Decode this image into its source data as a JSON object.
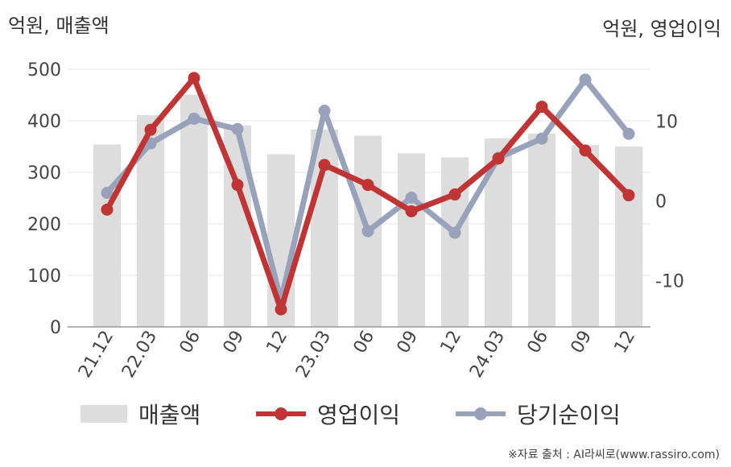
{
  "unit_left": "억원, 매출액",
  "unit_right": "억원, 영업이익",
  "source": "※자료 출처 : AI라씨로(www.rassiro.com)",
  "colors": {
    "revenue": "#dddddd",
    "operating_profit": "#c03434",
    "net_income": "#98a2ba",
    "grid": "#e6e6e6",
    "axis": "#999999"
  },
  "chart_data": {
    "type": "bar",
    "categories": [
      "21.12",
      "22.03",
      "06",
      "09",
      "12",
      "23.03",
      "06",
      "09",
      "12",
      "24.03",
      "06",
      "09",
      "12"
    ],
    "series": [
      {
        "name": "매출액",
        "type": "bar",
        "axis": "left",
        "values": [
          354,
          411,
          451,
          391,
          335,
          383,
          371,
          337,
          329,
          366,
          375,
          353,
          350
        ]
      },
      {
        "name": "영업이익",
        "type": "line",
        "axis": "right",
        "values": [
          -1.1,
          8.9,
          15.4,
          2.0,
          -13.6,
          4.5,
          2.0,
          -1.3,
          0.8,
          5.3,
          11.8,
          6.3,
          0.7
        ]
      },
      {
        "name": "당기순이익",
        "type": "line",
        "axis": "right",
        "values": [
          1.0,
          7.2,
          10.3,
          9.0,
          -12.5,
          11.3,
          -3.8,
          0.4,
          -4.0,
          5.4,
          7.8,
          15.2,
          8.4
        ]
      }
    ],
    "y_left": {
      "ticks": [
        0,
        100,
        200,
        300,
        400,
        500
      ],
      "range": [
        0,
        500
      ]
    },
    "y_right": {
      "ticks": [
        -10,
        0,
        10
      ],
      "range": [
        -15.8,
        16.5
      ]
    },
    "grid": true,
    "legend_position": "bottom"
  }
}
